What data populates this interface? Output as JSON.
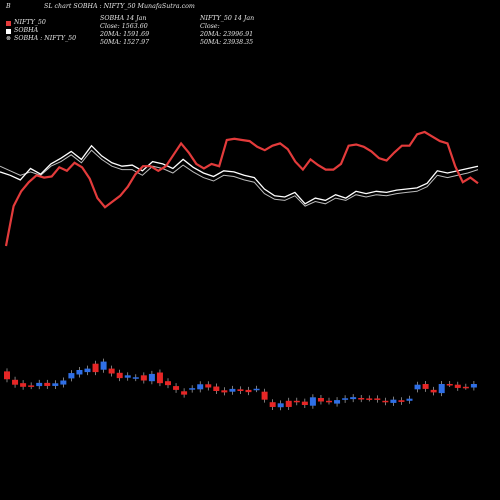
{
  "header": {
    "corner": "B",
    "title": "SL chart SOBHA : NIFTY_50  MunafaSutra.com",
    "sobha_col": {
      "line1": "SOBHA 14 Jan",
      "line2": "Close: 1563.60",
      "line3": "20MA: 1591.69",
      "line4": "50MA: 1527.97"
    },
    "nifty_col": {
      "line1": "NIFTY_50 14 Jan",
      "line2": "Close: ",
      "line3": "20MA: 23996.91",
      "line4": "50MA: 23938.35"
    }
  },
  "legend": [
    {
      "label": "NIFTY_50",
      "color": "#e33b3b",
      "icon": "square-swatch"
    },
    {
      "label": "SOBHA",
      "color": "#ffffff",
      "icon": "square-swatch"
    },
    {
      "label": "SOBHA : NIFTY_50",
      "color": "#bbbbbb",
      "icon": "ratio-icon"
    }
  ],
  "chart_data": {
    "type": "line",
    "title": "SL chart SOBHA : NIFTY_50",
    "series": [
      {
        "name": "NIFTY_50",
        "color": "#e33b3b",
        "values": [
          0.0,
          0.35,
          0.48,
          0.56,
          0.62,
          0.6,
          0.61,
          0.69,
          0.66,
          0.73,
          0.69,
          0.59,
          0.42,
          0.34,
          0.39,
          0.44,
          0.52,
          0.63,
          0.7,
          0.7,
          0.66,
          0.7,
          0.8,
          0.9,
          0.82,
          0.72,
          0.68,
          0.72,
          0.7,
          0.93,
          0.94,
          0.93,
          0.92,
          0.87,
          0.84,
          0.88,
          0.9,
          0.85,
          0.74,
          0.67,
          0.76,
          0.71,
          0.67,
          0.67,
          0.72,
          0.88,
          0.89,
          0.87,
          0.83,
          0.77,
          0.75,
          0.82,
          0.88,
          0.88,
          0.98,
          1.0,
          0.96,
          0.92,
          0.9,
          0.7,
          0.56,
          0.6,
          0.55
        ]
      },
      {
        "name": "SOBHA",
        "color": "#ffffff",
        "values": [
          0.65,
          0.62,
          0.58,
          0.68,
          0.63,
          0.72,
          0.77,
          0.83,
          0.76,
          0.88,
          0.79,
          0.73,
          0.7,
          0.71,
          0.66,
          0.74,
          0.72,
          0.68,
          0.76,
          0.69,
          0.64,
          0.61,
          0.66,
          0.65,
          0.62,
          0.6,
          0.5,
          0.44,
          0.43,
          0.47,
          0.37,
          0.42,
          0.4,
          0.45,
          0.42,
          0.48,
          0.46,
          0.48,
          0.47,
          0.49,
          0.5,
          0.51,
          0.55,
          0.66,
          0.64,
          0.66,
          0.68,
          0.7
        ]
      },
      {
        "name": "SOBHA : NIFTY_50",
        "color": "#bbbbbb",
        "values": [
          0.7,
          0.66,
          0.62,
          0.65,
          0.62,
          0.7,
          0.74,
          0.8,
          0.73,
          0.84,
          0.76,
          0.7,
          0.67,
          0.67,
          0.62,
          0.7,
          0.68,
          0.64,
          0.71,
          0.65,
          0.6,
          0.57,
          0.62,
          0.61,
          0.58,
          0.56,
          0.46,
          0.41,
          0.4,
          0.44,
          0.35,
          0.39,
          0.37,
          0.42,
          0.4,
          0.45,
          0.43,
          0.45,
          0.44,
          0.46,
          0.47,
          0.48,
          0.52,
          0.62,
          0.6,
          0.62,
          0.64,
          0.67
        ]
      }
    ],
    "candles": [
      {
        "o": 1.9,
        "c": 1.34,
        "bull": false
      },
      {
        "o": 1.3,
        "c": 0.95,
        "bull": false
      },
      {
        "o": 1.06,
        "c": 0.8,
        "bull": false
      },
      {
        "o": 0.9,
        "c": 0.85,
        "bull": false
      },
      {
        "o": 0.85,
        "c": 1.08,
        "bull": true
      },
      {
        "o": 1.08,
        "c": 0.86,
        "bull": false
      },
      {
        "o": 0.86,
        "c": 1.05,
        "bull": true
      },
      {
        "o": 0.96,
        "c": 1.25,
        "bull": true
      },
      {
        "o": 1.4,
        "c": 1.78,
        "bull": true
      },
      {
        "o": 1.68,
        "c": 2.0,
        "bull": true
      },
      {
        "o": 1.85,
        "c": 2.1,
        "bull": true
      },
      {
        "o": 2.45,
        "c": 1.85,
        "bull": false
      },
      {
        "o": 2.6,
        "c": 2.02,
        "bull": true
      },
      {
        "o": 2.1,
        "c": 1.75,
        "bull": false
      },
      {
        "o": 1.8,
        "c": 1.42,
        "bull": false
      },
      {
        "o": 1.45,
        "c": 1.62,
        "bull": true
      },
      {
        "o": 1.42,
        "c": 1.48,
        "bull": true
      },
      {
        "o": 1.62,
        "c": 1.25,
        "bull": false
      },
      {
        "o": 1.2,
        "c": 1.72,
        "bull": true
      },
      {
        "o": 1.82,
        "c": 1.06,
        "bull": false
      },
      {
        "o": 1.2,
        "c": 0.92,
        "bull": false
      },
      {
        "o": 0.85,
        "c": 0.58,
        "bull": false
      },
      {
        "o": 0.48,
        "c": 0.24,
        "bull": false
      },
      {
        "o": 0.6,
        "c": 0.7,
        "bull": true
      },
      {
        "o": 0.62,
        "c": 0.98,
        "bull": true
      },
      {
        "o": 0.98,
        "c": 0.75,
        "bull": false
      },
      {
        "o": 0.82,
        "c": 0.5,
        "bull": false
      },
      {
        "o": 0.55,
        "c": 0.4,
        "bull": false
      },
      {
        "o": 0.45,
        "c": 0.65,
        "bull": true
      },
      {
        "o": 0.62,
        "c": 0.5,
        "bull": false
      },
      {
        "o": 0.58,
        "c": 0.42,
        "bull": false
      },
      {
        "o": 0.63,
        "c": 0.66,
        "bull": true
      },
      {
        "o": 0.45,
        "c": -0.12,
        "bull": false
      },
      {
        "o": -0.3,
        "c": -0.64,
        "bull": false
      },
      {
        "o": -0.38,
        "c": -0.66,
        "bull": true
      },
      {
        "o": -0.64,
        "c": -0.2,
        "bull": false
      },
      {
        "o": -0.2,
        "c": -0.3,
        "bull": false
      },
      {
        "o": -0.5,
        "c": -0.26,
        "bull": false
      },
      {
        "o": -0.55,
        "c": 0.05,
        "bull": true
      },
      {
        "o": 0.0,
        "c": -0.25,
        "bull": false
      },
      {
        "o": -0.25,
        "c": -0.2,
        "bull": false
      },
      {
        "o": -0.4,
        "c": -0.15,
        "bull": true
      },
      {
        "o": -0.13,
        "c": -0.02,
        "bull": true
      },
      {
        "o": -0.08,
        "c": 0.06,
        "bull": true
      },
      {
        "o": 0.0,
        "c": -0.08,
        "bull": false
      },
      {
        "o": -0.03,
        "c": -0.03,
        "bull": false
      },
      {
        "o": -0.03,
        "c": -0.12,
        "bull": false
      },
      {
        "o": -0.2,
        "c": -0.3,
        "bull": false
      },
      {
        "o": -0.12,
        "c": -0.35,
        "bull": true
      },
      {
        "o": -0.28,
        "c": -0.16,
        "bull": false
      },
      {
        "o": -0.2,
        "c": -0.05,
        "bull": true
      },
      {
        "o": 0.62,
        "c": 0.95,
        "bull": true
      },
      {
        "o": 0.65,
        "c": 1.0,
        "bull": false
      },
      {
        "o": 0.4,
        "c": 0.58,
        "bull": false
      },
      {
        "o": 0.35,
        "c": 1.0,
        "bull": true
      },
      {
        "o": 1.0,
        "c": 1.0,
        "bull": false
      },
      {
        "o": 0.95,
        "c": 0.72,
        "bull": false
      },
      {
        "o": 0.8,
        "c": 0.8,
        "bull": false
      },
      {
        "o": 0.75,
        "c": 1.0,
        "bull": true
      }
    ],
    "colors": {
      "bull": "#2f6fe6",
      "bear": "#e62626",
      "background": "#000000"
    }
  }
}
